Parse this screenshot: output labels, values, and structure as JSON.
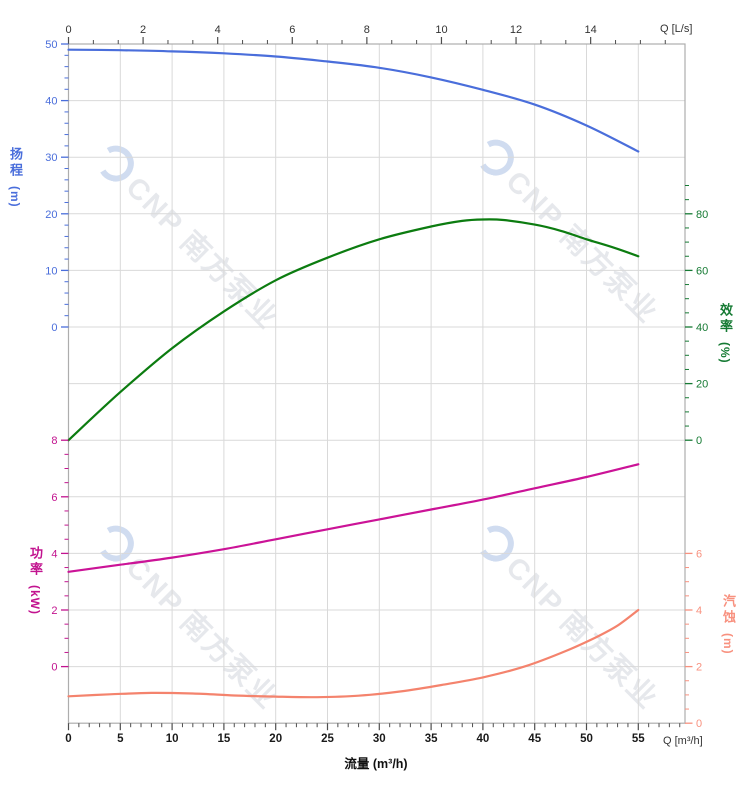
{
  "watermark": {
    "text": "CNP 南方泵业"
  },
  "chart_data": {
    "type": "line",
    "title": "",
    "grid": {
      "color": "#d9d9d9",
      "border": "#adadad",
      "grid_on": true
    },
    "x_bottom": {
      "axis_label": "流量 (m³/h)",
      "unit_label": "Q [m³/h]",
      "min": 0,
      "max": 59.5,
      "majors": [
        0,
        5,
        10,
        15,
        20,
        25,
        30,
        35,
        40,
        45,
        50,
        55
      ],
      "minor_step": 1,
      "minor_max": 59,
      "tick_color": "#4d4d4d",
      "label_color": "#1a1a1a"
    },
    "x_top": {
      "unit_label": "Q [L/s]",
      "min": 0,
      "max": 16.4,
      "majors": [
        0,
        2,
        4,
        6,
        8,
        10,
        12,
        14
      ],
      "minor_step": 0.6667,
      "minor_max": 16.3,
      "tick_color": "#4d4d4d",
      "label_color": "#333333"
    },
    "y_axes": {
      "head": {
        "title": "扬程",
        "unit": "(m)",
        "side": "left",
        "majors": [
          50,
          40,
          30,
          20,
          10,
          0
        ],
        "minor_step": 2,
        "minor_max": 50,
        "min": 0,
        "max": 50,
        "color": "#4a6edb"
      },
      "eff": {
        "title": "效率",
        "unit": "(%)",
        "side": "right",
        "majors": [
          80,
          60,
          40,
          20,
          0
        ],
        "minor_step": 5,
        "minor_max": 90,
        "min": 0,
        "max": 80,
        "color": "#157a33"
      },
      "power": {
        "title": "功率",
        "unit": "(kW)",
        "side": "left",
        "majors": [
          8,
          6,
          4,
          2,
          0
        ],
        "minor_step": 0.5,
        "minor_max": 8,
        "min": 0,
        "max": 8,
        "color": "#c2138f"
      },
      "npsh": {
        "title": "汽蚀",
        "unit": "(m)",
        "side": "right",
        "majors": [
          6,
          4,
          2,
          0
        ],
        "minor_step": 0.5,
        "minor_max": 6,
        "min": 0,
        "max": 6,
        "color": "#f8917f"
      }
    },
    "series": [
      {
        "id": "head-curve",
        "name": "扬程",
        "axis": "head",
        "color": "#4a6edb",
        "points": [
          [
            0,
            49
          ],
          [
            5,
            48.9
          ],
          [
            10,
            48.7
          ],
          [
            15,
            48.35
          ],
          [
            20,
            47.8
          ],
          [
            25,
            46.9
          ],
          [
            30,
            45.8
          ],
          [
            35,
            44.1
          ],
          [
            40,
            41.9
          ],
          [
            45,
            39.3
          ],
          [
            50,
            35.6
          ],
          [
            55,
            31
          ]
        ]
      },
      {
        "id": "eff-curve",
        "name": "效率",
        "axis": "eff",
        "color": "#0c7c10",
        "points": [
          [
            0,
            0
          ],
          [
            5,
            17
          ],
          [
            10,
            32.5
          ],
          [
            15,
            45.5
          ],
          [
            20,
            56.5
          ],
          [
            25,
            64.5
          ],
          [
            30,
            71
          ],
          [
            35,
            75.5
          ],
          [
            38,
            77.5
          ],
          [
            40,
            78
          ],
          [
            42,
            77.8
          ],
          [
            45,
            76.2
          ],
          [
            47.5,
            74
          ],
          [
            50,
            71
          ],
          [
            52.5,
            68.2
          ],
          [
            55,
            65
          ]
        ]
      },
      {
        "id": "power-curve",
        "name": "功率",
        "axis": "power",
        "color": "#cb1397",
        "points": [
          [
            0,
            3.35
          ],
          [
            5,
            3.6
          ],
          [
            10,
            3.85
          ],
          [
            15,
            4.15
          ],
          [
            20,
            4.5
          ],
          [
            25,
            4.85
          ],
          [
            30,
            5.2
          ],
          [
            35,
            5.55
          ],
          [
            40,
            5.9
          ],
          [
            45,
            6.3
          ],
          [
            50,
            6.7
          ],
          [
            55,
            7.15
          ]
        ]
      },
      {
        "id": "npsh-curve",
        "name": "汽蚀",
        "axis": "npsh",
        "color": "#f4836d",
        "points": [
          [
            0,
            0.95
          ],
          [
            4,
            1.02
          ],
          [
            8,
            1.07
          ],
          [
            12,
            1.05
          ],
          [
            16,
            0.98
          ],
          [
            20,
            0.94
          ],
          [
            24,
            0.92
          ],
          [
            28,
            0.97
          ],
          [
            32,
            1.12
          ],
          [
            36,
            1.35
          ],
          [
            40,
            1.62
          ],
          [
            44,
            2.0
          ],
          [
            48,
            2.55
          ],
          [
            51,
            3.05
          ],
          [
            53,
            3.45
          ],
          [
            55,
            4.0
          ]
        ]
      }
    ]
  }
}
